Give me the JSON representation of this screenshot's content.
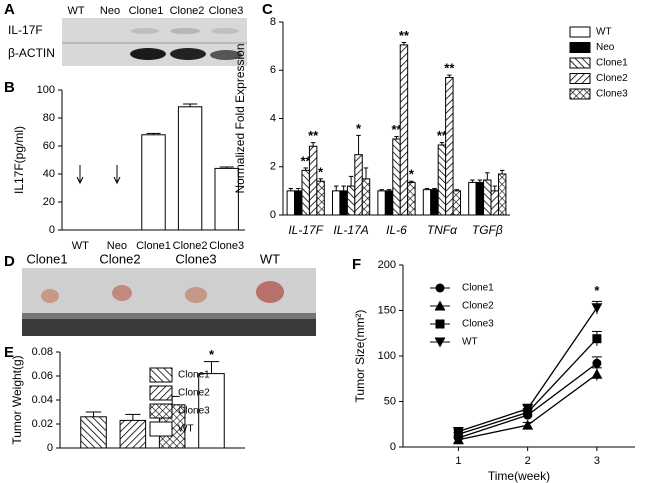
{
  "blot": {
    "panel": "A",
    "lanes": [
      "WT",
      "Neo",
      "Clone1",
      "Clone2",
      "Clone3"
    ],
    "rows": [
      "IL-17F",
      "β-ACTIN"
    ]
  },
  "photo": {
    "panel": "D",
    "samples": [
      "Clone1",
      "Clone2",
      "Clone3",
      "WT"
    ]
  },
  "chart_data": [
    {
      "panel": "B",
      "type": "bar",
      "categories": [
        "WT",
        "Neo",
        "Clone1",
        "Clone2",
        "Clone3"
      ],
      "values": [
        0,
        0,
        68,
        88,
        44
      ],
      "errors": [
        0,
        0,
        1,
        2,
        1
      ],
      "color": "#ffffff",
      "ylabel": "IL17F(pg/ml)",
      "ylim": [
        0,
        100
      ],
      "yticks": [
        0,
        20,
        40,
        60,
        80,
        100
      ]
    },
    {
      "panel": "C",
      "type": "bar",
      "categories": [
        "IL-17F",
        "IL-17A",
        "IL-6",
        "TNFα",
        "TGFβ"
      ],
      "ylabel": "Normalized Fold Expression",
      "ylim": [
        0,
        8
      ],
      "yticks": [
        0,
        2,
        4,
        6,
        8
      ],
      "series": [
        {
          "name": "WT",
          "color": "#ffffff",
          "values": [
            1.0,
            1.0,
            1.0,
            1.05,
            1.35
          ],
          "errors": [
            0.1,
            0.2,
            0.05,
            0.05,
            0.1
          ],
          "significance": [
            null,
            null,
            null,
            null,
            null
          ]
        },
        {
          "name": "Neo",
          "color": "#000000",
          "values": [
            1.0,
            1.0,
            1.0,
            1.05,
            1.35
          ],
          "errors": [
            0.1,
            0.2,
            0.05,
            0.05,
            0.1
          ],
          "significance": [
            null,
            null,
            null,
            null,
            null
          ]
        },
        {
          "name": "Clone1",
          "color": "#000000",
          "pattern": "back",
          "values": [
            1.85,
            1.2,
            3.15,
            2.9,
            1.45
          ],
          "errors": [
            0.1,
            0.4,
            0.1,
            0.1,
            0.3
          ],
          "significance": [
            "**",
            null,
            "**",
            "**",
            null
          ]
        },
        {
          "name": "Clone2",
          "color": "#000000",
          "pattern": "fwd",
          "values": [
            2.85,
            2.5,
            7.05,
            5.7,
            1.0
          ],
          "errors": [
            0.15,
            0.8,
            0.1,
            0.1,
            0.2
          ],
          "significance": [
            "**",
            "*",
            "**",
            "**",
            null
          ]
        },
        {
          "name": "Clone3",
          "color": "#000000",
          "pattern": "cross",
          "values": [
            1.4,
            1.5,
            1.35,
            1.0,
            1.7
          ],
          "errors": [
            0.1,
            0.45,
            0.05,
            0.05,
            0.15
          ],
          "significance": [
            "*",
            null,
            "*",
            null,
            null
          ]
        }
      ]
    },
    {
      "panel": "E",
      "type": "bar",
      "ylabel": "Tumor Weight(g)",
      "ylim": [
        0,
        0.08
      ],
      "yticks": [
        0,
        0.02,
        0.04,
        0.06,
        0.08
      ],
      "series": [
        {
          "name": "Clone1",
          "color": "#000000",
          "pattern": "back",
          "values": [
            0.026
          ],
          "errors": [
            0.004
          ],
          "significance": [
            null
          ]
        },
        {
          "name": "Clone2",
          "color": "#000000",
          "pattern": "fwd",
          "values": [
            0.023
          ],
          "errors": [
            0.005
          ],
          "significance": [
            null
          ]
        },
        {
          "name": "Clone3",
          "color": "#000000",
          "pattern": "cross",
          "values": [
            0.036
          ],
          "errors": [
            0.007
          ],
          "significance": [
            null
          ]
        },
        {
          "name": "WT",
          "color": "#ffffff",
          "values": [
            0.062
          ],
          "errors": [
            0.01
          ],
          "significance": [
            "*"
          ]
        }
      ]
    },
    {
      "panel": "F",
      "type": "line",
      "x": [
        1,
        2,
        3
      ],
      "xlabel": "Time(week)",
      "ylabel": "Tumor Size(mm²)",
      "xlim": [
        0.2,
        3.55
      ],
      "xticks": [
        1,
        2,
        3
      ],
      "ylim": [
        0,
        200
      ],
      "yticks": [
        0,
        50,
        100,
        150,
        200
      ],
      "series": [
        {
          "name": "Clone1",
          "color": "#000000",
          "marker": "circle",
          "values": [
            10,
            35,
            92
          ],
          "errors": [
            2,
            4,
            7
          ],
          "significance": [
            null,
            null,
            null
          ]
        },
        {
          "name": "Clone2",
          "color": "#000000",
          "marker": "triangle-up",
          "values": [
            8,
            24,
            80
          ],
          "errors": [
            2,
            3,
            7
          ],
          "significance": [
            null,
            null,
            null
          ]
        },
        {
          "name": "Clone3",
          "color": "#000000",
          "marker": "square",
          "values": [
            14,
            38,
            119
          ],
          "errors": [
            2,
            4,
            8
          ],
          "significance": [
            null,
            null,
            null
          ]
        },
        {
          "name": "WT",
          "color": "#000000",
          "marker": "triangle-down",
          "values": [
            17,
            42,
            153
          ],
          "errors": [
            2,
            5,
            7
          ],
          "significance": [
            null,
            null,
            "*"
          ]
        }
      ]
    }
  ]
}
